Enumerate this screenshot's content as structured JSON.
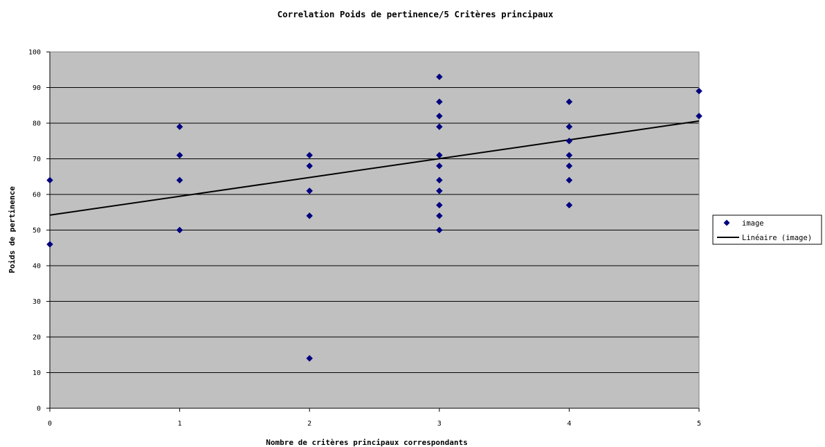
{
  "chart_data": {
    "type": "scatter",
    "title": "Correlation Poids de pertinence/5 Critères principaux",
    "xlabel": "Nombre de critères principaux correspondants",
    "ylabel": "Poids de pertinence",
    "xlim": [
      0,
      5
    ],
    "ylim": [
      0,
      100
    ],
    "x_ticks": [
      "0",
      "1",
      "2",
      "3",
      "4",
      "5"
    ],
    "y_ticks": [
      "0",
      "10",
      "20",
      "30",
      "40",
      "50",
      "60",
      "70",
      "80",
      "90",
      "100"
    ],
    "grid": "horizontal",
    "legend_position": "right",
    "plot_background": "#c0c0c0",
    "series": [
      {
        "name": "image",
        "color": "#000080",
        "marker": "diamond",
        "x": [
          0,
          0,
          1,
          1,
          1,
          1,
          2,
          2,
          2,
          2,
          2,
          3,
          3,
          3,
          3,
          3,
          3,
          3,
          3,
          3,
          3,
          3,
          4,
          4,
          4,
          4,
          4,
          4,
          4,
          5,
          5
        ],
        "y": [
          64,
          46,
          79,
          71,
          64,
          50,
          71,
          68,
          61,
          54,
          14,
          93,
          86,
          82,
          79,
          71,
          68,
          64,
          61,
          57,
          54,
          50,
          86,
          79,
          75,
          71,
          68,
          64,
          57,
          89,
          82
        ]
      }
    ],
    "trendline": {
      "name": "Linéaire (image)",
      "type": "linear",
      "color": "#000000",
      "start": [
        0,
        54.2
      ],
      "end": [
        5,
        80.6
      ]
    }
  }
}
